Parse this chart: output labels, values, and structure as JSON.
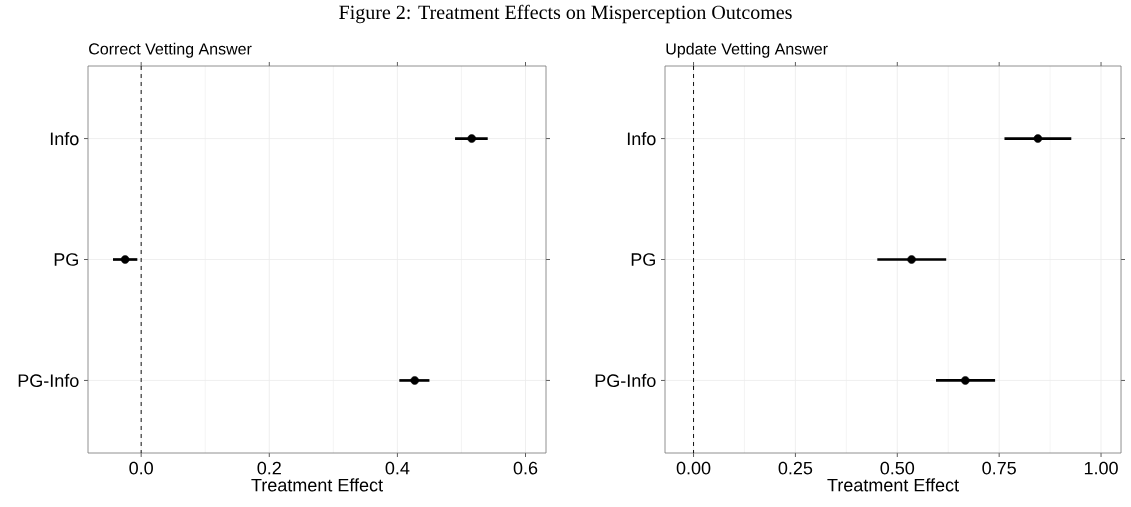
{
  "chart_data": [
    {
      "type": "scatter",
      "title": "Figure 2: Treatment Effects on Misperception Outcomes",
      "subtitle": "Correct Vetting Answer",
      "xlabel": "Treatment Effect",
      "orientation": "horizontal",
      "categories": [
        "Info",
        "PG",
        "PG-Info"
      ],
      "values": [
        0.516,
        -0.025,
        0.427
      ],
      "color": "#000000",
      "errors": [
        [
          0.49,
          0.541
        ],
        [
          -0.044,
          -0.006
        ],
        [
          0.403,
          0.45
        ]
      ],
      "xlim": [
        -0.083,
        0.632
      ],
      "xticks": [
        {
          "value": 0,
          "label": "0.0"
        },
        {
          "value": 0.2,
          "label": "0.2"
        },
        {
          "value": 0.4,
          "label": "0.4"
        },
        {
          "value": 0.6,
          "label": "0.6"
        }
      ],
      "ref_lines": [
        {
          "axis": "x",
          "value": 0,
          "line_style": "dashed"
        }
      ],
      "grid": true,
      "marker": "circle"
    },
    {
      "type": "scatter",
      "subtitle": "Update Vetting Answer",
      "xlabel": "Treatment Effect",
      "orientation": "horizontal",
      "categories": [
        "Info",
        "PG",
        "PG-Info"
      ],
      "values": [
        0.845,
        0.535,
        0.667
      ],
      "color": "#000000",
      "errors": [
        [
          0.763,
          0.927
        ],
        [
          0.451,
          0.62
        ],
        [
          0.595,
          0.74
        ]
      ],
      "xlim": [
        -0.07,
        1.049
      ],
      "xticks": [
        {
          "value": 0,
          "label": "0.00"
        },
        {
          "value": 0.25,
          "label": "0.25"
        },
        {
          "value": 0.5,
          "label": "0.50"
        },
        {
          "value": 0.75,
          "label": "0.75"
        },
        {
          "value": 1,
          "label": "1.00"
        }
      ],
      "ref_lines": [
        {
          "axis": "x",
          "value": 0,
          "line_style": "dashed"
        }
      ],
      "grid": true,
      "marker": "circle"
    }
  ]
}
